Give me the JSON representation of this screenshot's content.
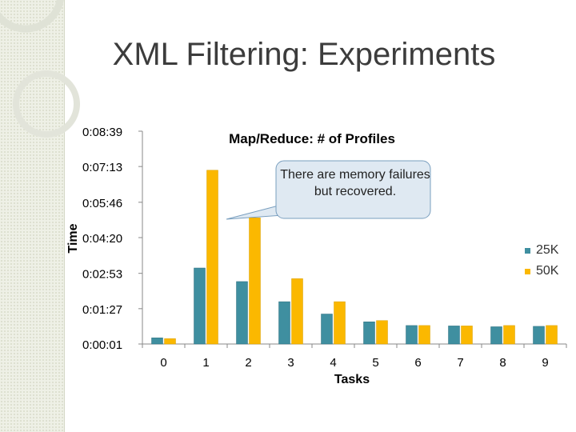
{
  "slide": {
    "title": "XML Filtering: Experiments"
  },
  "callout": {
    "text": "There are memory failures but recovered."
  },
  "colors": {
    "series_25k": "#3f8fa0",
    "series_50k": "#fbb800",
    "band": "#eef0e6",
    "callout_fill": "#dfe9f2"
  },
  "chart_data": {
    "type": "bar",
    "title": "Map/Reduce: # of Profiles",
    "xlabel": "Tasks",
    "ylabel": "Time",
    "categories": [
      "0",
      "1",
      "2",
      "3",
      "4",
      "5",
      "6",
      "7",
      "8",
      "9"
    ],
    "y_ticks": [
      "0:00:01",
      "0:01:27",
      "0:02:53",
      "0:04:20",
      "0:05:46",
      "0:07:13",
      "0:08:39"
    ],
    "y_tick_seconds": [
      1,
      87,
      173,
      260,
      346,
      433,
      519
    ],
    "ylim_seconds": [
      1,
      519
    ],
    "units": "seconds (h:mm:ss)",
    "series": [
      {
        "name": "25K",
        "values_seconds": [
          16,
          186,
          153,
          104,
          74,
          55,
          46,
          45,
          43,
          44
        ]
      },
      {
        "name": "50K",
        "values_seconds": [
          14,
          424,
          308,
          160,
          104,
          58,
          46,
          45,
          46,
          46
        ]
      }
    ],
    "legend_position": "right",
    "grid": false
  }
}
